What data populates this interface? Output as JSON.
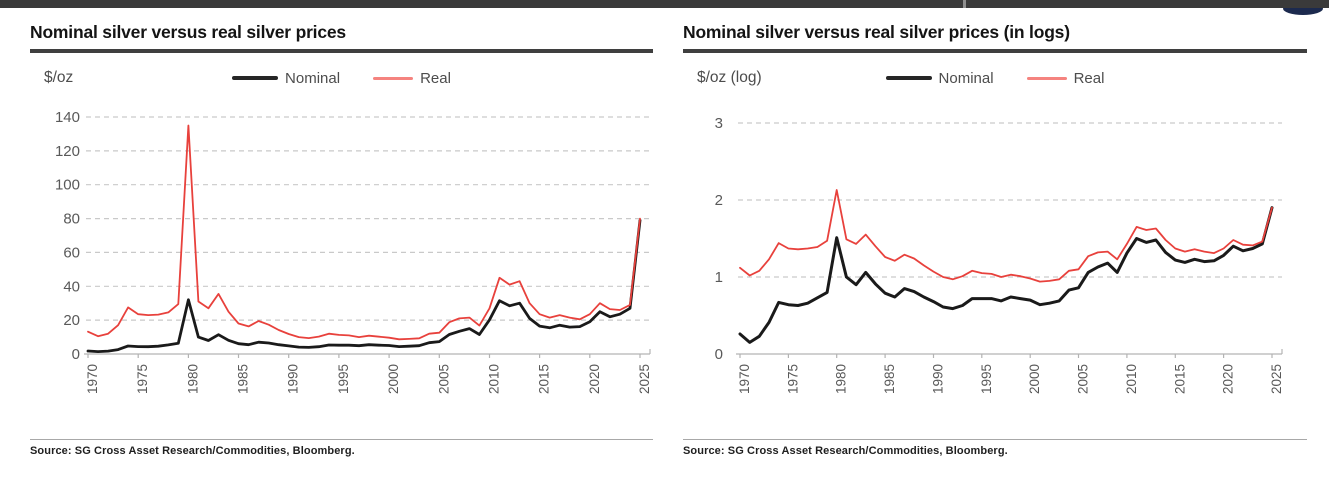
{
  "window": {
    "top_bar_color": "#3a3a3a",
    "top_bar_separator_color": "#8f8f8f",
    "corner_orb_color": "#1c2a4e"
  },
  "style_colors": {
    "grid": "#c9c9c9",
    "axis": "#b3b3b3",
    "tick_text": "#595959",
    "title_rule": "#3f3f3f",
    "source_rule": "#a8a8a8"
  },
  "chart_data": [
    {
      "type": "line",
      "title": "Nominal silver versus real silver prices",
      "unit": "$/oz",
      "ylim": [
        0,
        140
      ],
      "yticks": [
        0,
        20,
        40,
        60,
        80,
        100,
        120,
        140
      ],
      "xticks": [
        1970,
        1975,
        1980,
        1985,
        1990,
        1995,
        2000,
        2005,
        2010,
        2015,
        2020,
        2025
      ],
      "grid": "horizontal-dashed",
      "legend_position": "top-center",
      "x": [
        1970,
        1971,
        1972,
        1973,
        1974,
        1975,
        1976,
        1977,
        1978,
        1979,
        1980,
        1981,
        1982,
        1983,
        1984,
        1985,
        1986,
        1987,
        1988,
        1989,
        1990,
        1991,
        1992,
        1993,
        1994,
        1995,
        1996,
        1997,
        1998,
        1999,
        2000,
        2001,
        2002,
        2003,
        2004,
        2005,
        2006,
        2007,
        2008,
        2009,
        2010,
        2011,
        2012,
        2013,
        2014,
        2015,
        2016,
        2017,
        2018,
        2019,
        2020,
        2021,
        2022,
        2023,
        2024,
        2025
      ],
      "series": [
        {
          "name": "Nominal",
          "color": "#1a1a1a",
          "legend_color": "#262626",
          "width": 2.8,
          "values": [
            1.8,
            1.4,
            1.7,
            2.6,
            4.7,
            4.4,
            4.3,
            4.6,
            5.4,
            6.3,
            32,
            10,
            8,
            11.4,
            8.1,
            6.1,
            5.5,
            7,
            6.5,
            5.5,
            4.8,
            4.1,
            3.9,
            4.3,
            5.3,
            5.2,
            5.2,
            4.9,
            5.5,
            5.2,
            5,
            4.4,
            4.6,
            4.9,
            6.7,
            7.3,
            11.5,
            13.4,
            15,
            11.5,
            20.2,
            31.5,
            28.5,
            30,
            21,
            16.5,
            15.5,
            17,
            15.9,
            16.2,
            19,
            25,
            22,
            23.5,
            27,
            79
          ]
        },
        {
          "name": "Real",
          "color": "#e8413c",
          "legend_color": "#f5837f",
          "width": 1.8,
          "values": [
            13.2,
            10.5,
            12,
            17,
            27.5,
            23.5,
            23,
            23.3,
            24.6,
            29.5,
            135,
            31,
            27,
            35.5,
            25,
            18,
            16.3,
            19.5,
            17.3,
            14.2,
            11.8,
            10,
            9.4,
            10.3,
            12,
            11.3,
            11,
            10,
            10.8,
            10.2,
            9.6,
            8.7,
            8.9,
            9.3,
            12,
            12.6,
            18.8,
            21,
            21.5,
            16.8,
            27,
            45,
            41,
            43,
            30,
            23.5,
            21.5,
            23,
            21.5,
            20.5,
            23.5,
            30,
            26.5,
            26,
            29,
            80
          ]
        }
      ],
      "source": "Source: SG Cross Asset Research/Commodities, Bloomberg."
    },
    {
      "type": "line",
      "title": "Nominal silver versus real silver prices (in logs)",
      "unit": "$/oz (log)",
      "ylim": [
        0,
        3
      ],
      "yticks": [
        0,
        1,
        2,
        3
      ],
      "xticks": [
        1970,
        1975,
        1980,
        1985,
        1990,
        1995,
        2000,
        2005,
        2010,
        2015,
        2020,
        2025
      ],
      "grid": "horizontal-dashed",
      "legend_position": "top-center",
      "x": [
        1970,
        1971,
        1972,
        1973,
        1974,
        1975,
        1976,
        1977,
        1978,
        1979,
        1980,
        1981,
        1982,
        1983,
        1984,
        1985,
        1986,
        1987,
        1988,
        1989,
        1990,
        1991,
        1992,
        1993,
        1994,
        1995,
        1996,
        1997,
        1998,
        1999,
        2000,
        2001,
        2002,
        2003,
        2004,
        2005,
        2006,
        2007,
        2008,
        2009,
        2010,
        2011,
        2012,
        2013,
        2014,
        2015,
        2016,
        2017,
        2018,
        2019,
        2020,
        2021,
        2022,
        2023,
        2024,
        2025
      ],
      "series": [
        {
          "name": "Nominal",
          "color": "#1a1a1a",
          "legend_color": "#262626",
          "width": 3,
          "values": [
            0.26,
            0.15,
            0.23,
            0.41,
            0.67,
            0.64,
            0.63,
            0.66,
            0.73,
            0.8,
            1.51,
            1.0,
            0.9,
            1.06,
            0.91,
            0.79,
            0.74,
            0.85,
            0.81,
            0.74,
            0.68,
            0.61,
            0.59,
            0.63,
            0.72,
            0.72,
            0.72,
            0.69,
            0.74,
            0.72,
            0.7,
            0.64,
            0.66,
            0.69,
            0.83,
            0.86,
            1.06,
            1.13,
            1.18,
            1.06,
            1.31,
            1.5,
            1.45,
            1.48,
            1.32,
            1.22,
            1.19,
            1.23,
            1.2,
            1.21,
            1.28,
            1.4,
            1.34,
            1.37,
            1.43,
            1.9
          ]
        },
        {
          "name": "Real",
          "color": "#e8413c",
          "legend_color": "#f5837f",
          "width": 1.8,
          "values": [
            1.12,
            1.02,
            1.08,
            1.23,
            1.44,
            1.37,
            1.36,
            1.37,
            1.39,
            1.47,
            2.13,
            1.49,
            1.43,
            1.55,
            1.4,
            1.26,
            1.21,
            1.29,
            1.24,
            1.15,
            1.07,
            1.0,
            0.97,
            1.01,
            1.08,
            1.05,
            1.04,
            1.0,
            1.03,
            1.01,
            0.98,
            0.94,
            0.95,
            0.97,
            1.08,
            1.1,
            1.27,
            1.32,
            1.33,
            1.23,
            1.43,
            1.65,
            1.61,
            1.63,
            1.48,
            1.37,
            1.33,
            1.36,
            1.33,
            1.31,
            1.37,
            1.48,
            1.42,
            1.41,
            1.46,
            1.9
          ]
        }
      ],
      "source": "Source: SG Cross Asset Research/Commodities, Bloomberg."
    }
  ]
}
